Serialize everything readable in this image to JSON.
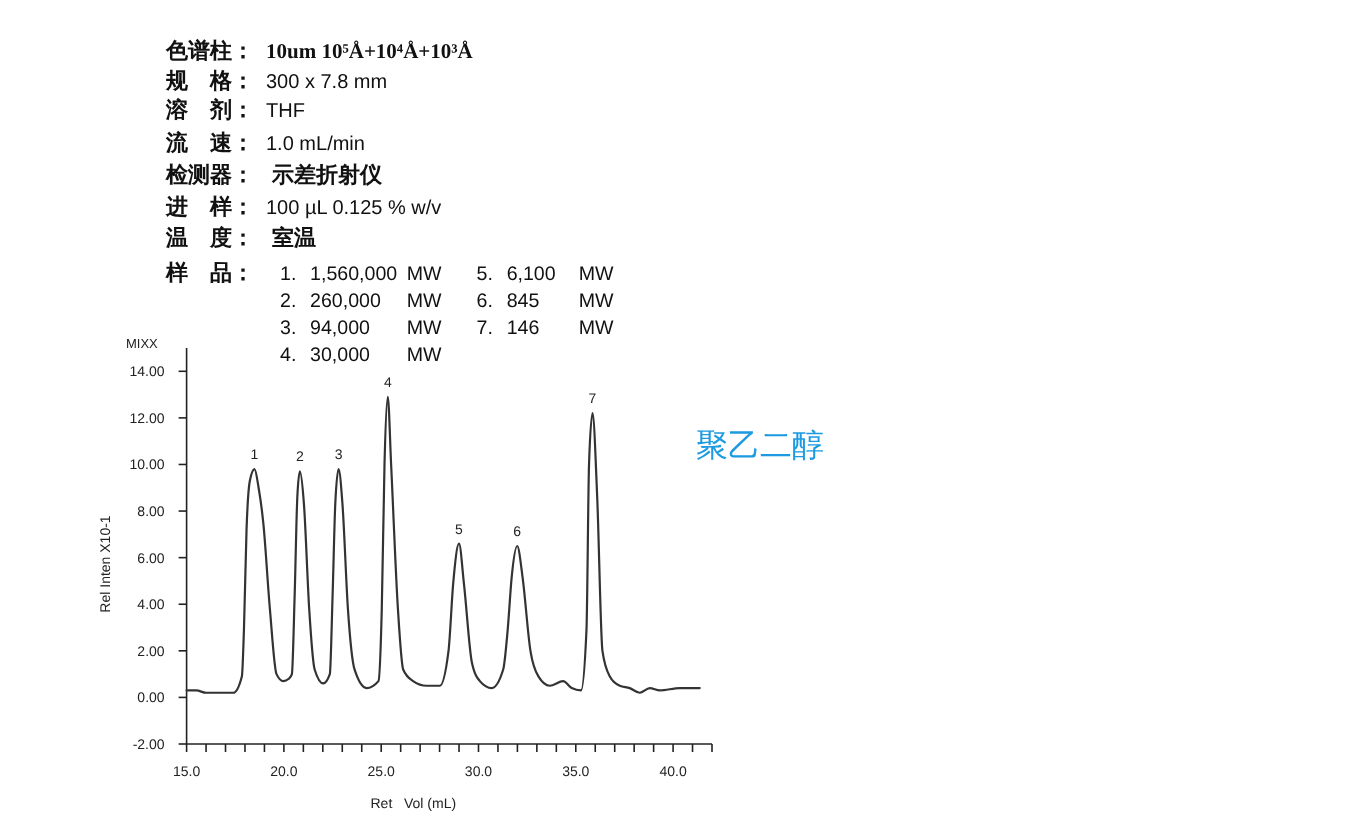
{
  "chart_data": {
    "type": "line",
    "xlabel": "Ret   Vol (mL)",
    "ylabel": "Rel Inten X10-1",
    "xlim": [
      15,
      42
    ],
    "ylim": [
      -2,
      15
    ],
    "xticks": [
      {
        "value": 15,
        "label": "15.0"
      },
      {
        "value": 16,
        "label": null
      },
      {
        "value": 17,
        "label": null
      },
      {
        "value": 18,
        "label": null
      },
      {
        "value": 19,
        "label": null
      },
      {
        "value": 20,
        "label": "20.0"
      },
      {
        "value": 21,
        "label": null
      },
      {
        "value": 22,
        "label": null
      },
      {
        "value": 23,
        "label": null
      },
      {
        "value": 24,
        "label": null
      },
      {
        "value": 25,
        "label": "25.0"
      },
      {
        "value": 26,
        "label": null
      },
      {
        "value": 27,
        "label": null
      },
      {
        "value": 28,
        "label": null
      },
      {
        "value": 29,
        "label": null
      },
      {
        "value": 30,
        "label": "30.0"
      },
      {
        "value": 31,
        "label": null
      },
      {
        "value": 32,
        "label": null
      },
      {
        "value": 33,
        "label": null
      },
      {
        "value": 34,
        "label": null
      },
      {
        "value": 35,
        "label": "35.0"
      },
      {
        "value": 36,
        "label": null
      },
      {
        "value": 37,
        "label": null
      },
      {
        "value": 38,
        "label": null
      },
      {
        "value": 39,
        "label": null
      },
      {
        "value": 40,
        "label": "40.0"
      },
      {
        "value": 41,
        "label": null
      },
      {
        "value": 42,
        "label": null
      }
    ],
    "yticks": [
      {
        "value": -2,
        "label": "-2.00"
      },
      {
        "value": 0,
        "label": "0.00"
      },
      {
        "value": 2,
        "label": "2.00"
      },
      {
        "value": 4,
        "label": "4.00"
      },
      {
        "value": 6,
        "label": "6.00"
      },
      {
        "value": 8,
        "label": "8.00"
      },
      {
        "value": 10,
        "label": "10.00"
      },
      {
        "value": 12,
        "label": "12.00"
      },
      {
        "value": 14,
        "label": "14.00"
      }
    ],
    "series": [
      {
        "color": "#333333",
        "x": [
          15.0,
          15.5,
          16.0,
          16.8,
          17.4,
          17.84,
          17.95,
          18.08,
          18.25,
          18.49,
          18.7,
          18.94,
          19.28,
          19.62,
          19.97,
          20.25,
          20.41,
          20.55,
          20.69,
          20.82,
          21.03,
          21.3,
          21.58,
          22.02,
          22.36,
          22.5,
          22.64,
          22.81,
          23.01,
          23.29,
          23.63,
          24.25,
          24.86,
          25.03,
          25.17,
          25.34,
          25.51,
          25.86,
          26.13,
          26.64,
          27.33,
          28.01,
          28.46,
          28.7,
          29.0,
          29.25,
          29.66,
          30.07,
          30.68,
          31.27,
          31.5,
          31.71,
          31.99,
          32.26,
          32.67,
          33.08,
          33.66,
          34.35,
          34.79,
          35.27,
          35.55,
          35.68,
          35.86,
          36.1,
          36.37,
          36.75,
          37.26,
          37.77,
          38.29,
          38.8,
          39.32,
          40.34,
          41.37
        ],
        "values": [
          0.3,
          0.3,
          0.2,
          0.2,
          0.2,
          0.9,
          3.0,
          7.2,
          9.3,
          9.8,
          9.0,
          7.5,
          3.8,
          1.0,
          0.7,
          0.8,
          1.0,
          4.3,
          8.6,
          9.7,
          8.3,
          3.8,
          1.2,
          0.6,
          1.0,
          4.3,
          8.3,
          9.8,
          8.3,
          3.8,
          1.2,
          0.4,
          0.7,
          3.8,
          10.0,
          12.9,
          10.0,
          3.8,
          1.2,
          0.7,
          0.5,
          0.5,
          2.0,
          4.9,
          6.6,
          4.9,
          1.5,
          0.7,
          0.4,
          1.2,
          2.9,
          5.2,
          6.5,
          5.2,
          2.0,
          0.9,
          0.5,
          0.7,
          0.4,
          0.3,
          2.9,
          10.0,
          12.2,
          8.6,
          2.0,
          0.9,
          0.5,
          0.4,
          0.2,
          0.4,
          0.3,
          0.4,
          0.4
        ]
      }
    ],
    "annotations": [
      "色谱柱：",
      "10um 10⁵Å+10⁴Å+10³Å",
      "规　格：",
      "300 x 7.8 mm",
      "溶　剂：",
      "THF",
      "流　速：",
      "1.0 mL/min",
      "检测器：",
      "示差折射仪",
      "进　样：",
      "100 µL 0.125 % w/v",
      "温　度：",
      "室温",
      "样　品：",
      "1. 1,560,000 MW",
      "2. 260,000 MW",
      "3. 94,000 MW",
      "4. 30,000 MW",
      "5. 6,100 MW",
      "6. 845 MW",
      "7. 146 MW",
      "MIXX",
      "聚乙二醇",
      {
        "text": "1",
        "x": 18.49,
        "y": 9.8
      },
      {
        "text": "2",
        "x": 20.82,
        "y": 9.7
      },
      {
        "text": "3",
        "x": 22.81,
        "y": 9.8
      },
      {
        "text": "4",
        "x": 25.34,
        "y": 12.9
      },
      {
        "text": "5",
        "x": 29.0,
        "y": 6.6
      },
      {
        "text": "6",
        "x": 31.99,
        "y": 6.5
      },
      {
        "text": "7",
        "x": 35.86,
        "y": 12.2
      }
    ]
  }
}
